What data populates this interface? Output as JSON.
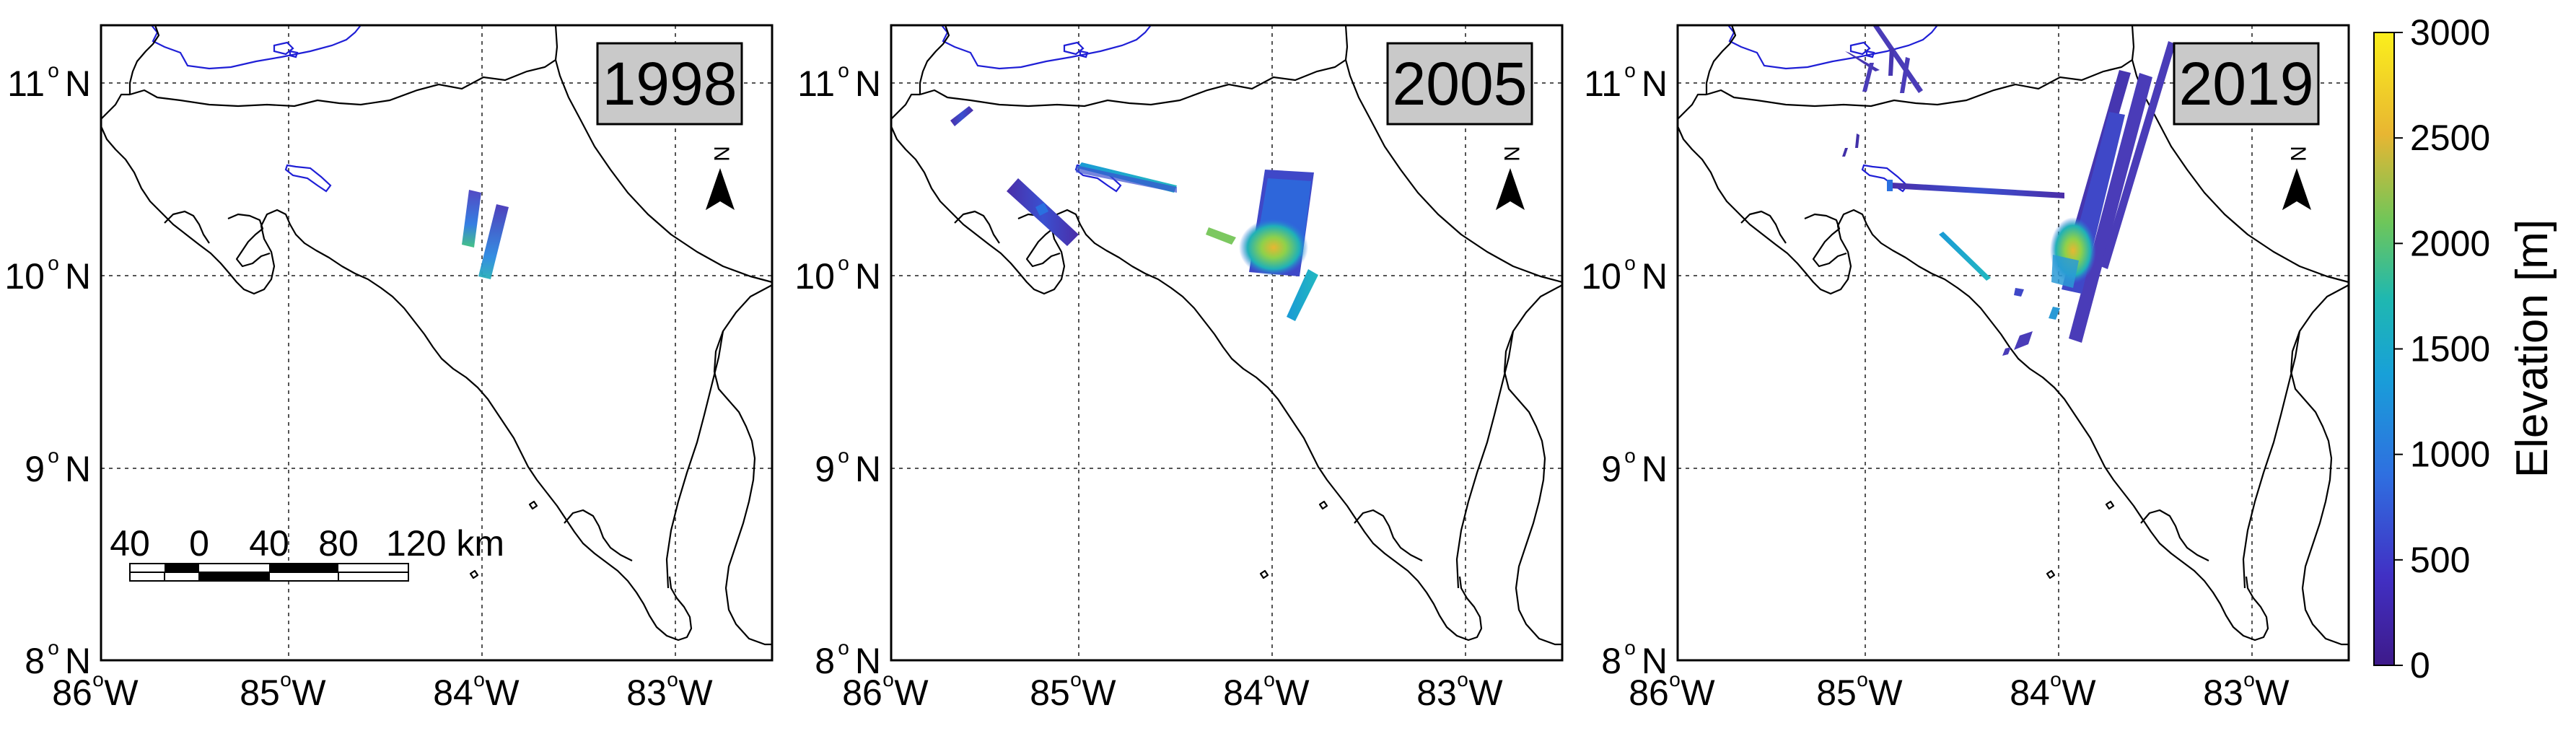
{
  "colorbar": {
    "label": "Elevation [m]",
    "ticks": [
      "0",
      "500",
      "1000",
      "1500",
      "2000",
      "2500",
      "3000"
    ],
    "range": [
      0,
      3000
    ],
    "colormap": [
      "#440154",
      "#3b2e91",
      "#2f6fd9",
      "#1aa7c9",
      "#34c08c",
      "#8fd14a",
      "#e8c834",
      "#f5e51f"
    ]
  },
  "axes": {
    "x_ticks": [
      "86",
      "85",
      "84",
      "83"
    ],
    "x_suffix": "W",
    "y_ticks": [
      "11",
      "10",
      "9",
      "8"
    ],
    "y_suffix": "N",
    "degree_symbol": "o"
  },
  "panels": [
    {
      "year": "1998"
    },
    {
      "year": "2005"
    },
    {
      "year": "2019"
    }
  ],
  "north_arrow": {
    "letter": "N"
  },
  "scalebar": {
    "labels": [
      "40",
      "0",
      "40",
      "80",
      "120 km"
    ]
  }
}
